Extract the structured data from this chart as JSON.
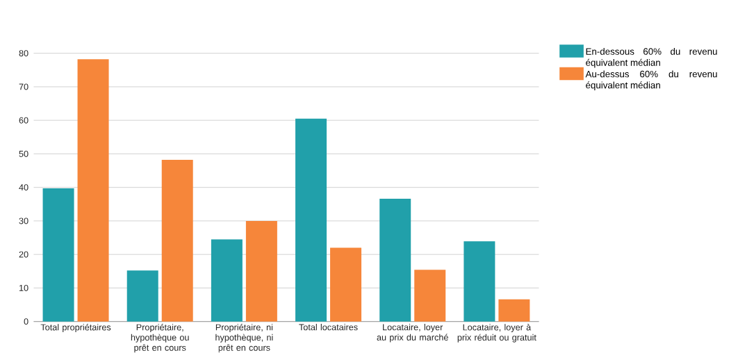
{
  "chart_data": {
    "type": "bar",
    "categories": [
      "Total propriétaires",
      "Propriétaire, hypothèque ou prêt en cours",
      "Propriétaire, ni hypothèque, ni prêt en cours",
      "Total locataires",
      "Locataire, loyer au prix du marché",
      "Locataire, loyer à prix réduit ou gratuit"
    ],
    "series": [
      {
        "name": "En-dessous 60% du revenu équivalent médian",
        "color": "#21a0aa",
        "values": [
          39.7,
          15.2,
          24.5,
          60.5,
          36.6,
          23.9
        ]
      },
      {
        "name": "Au-dessus 60% du revenu équivalent médian",
        "color": "#f6863a",
        "values": [
          78.2,
          48.2,
          30.0,
          22.0,
          15.4,
          6.6
        ]
      }
    ],
    "ylim": [
      0,
      80
    ],
    "yticks": [
      0,
      10,
      20,
      30,
      40,
      50,
      60,
      70,
      80
    ],
    "grid": "y",
    "legend": "top right"
  }
}
